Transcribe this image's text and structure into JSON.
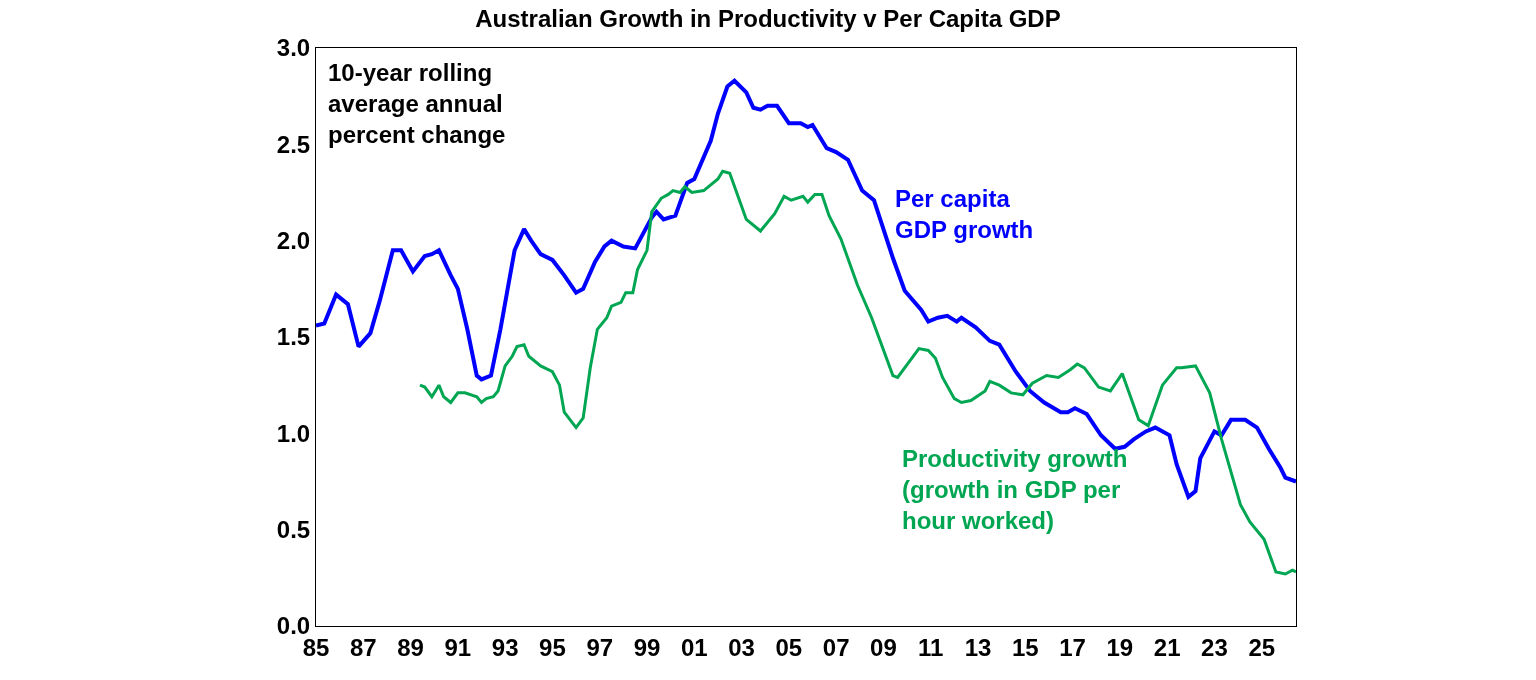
{
  "chart_data": {
    "type": "line",
    "title": "Australian Growth in Productivity v Per Capita GDP",
    "annotations": [
      "10-year rolling\naverage annual\npercent change"
    ],
    "xlim": [
      1985,
      2026.45
    ],
    "xticks": [
      {
        "value": 1985,
        "label": "85"
      },
      {
        "value": 1987,
        "label": "87"
      },
      {
        "value": 1989,
        "label": "89"
      },
      {
        "value": 1991,
        "label": "91"
      },
      {
        "value": 1993,
        "label": "93"
      },
      {
        "value": 1995,
        "label": "95"
      },
      {
        "value": 1997,
        "label": "97"
      },
      {
        "value": 1999,
        "label": "99"
      },
      {
        "value": 2001,
        "label": "01"
      },
      {
        "value": 2003,
        "label": "03"
      },
      {
        "value": 2005,
        "label": "05"
      },
      {
        "value": 2007,
        "label": "07"
      },
      {
        "value": 2009,
        "label": "09"
      },
      {
        "value": 2011,
        "label": "11"
      },
      {
        "value": 2013,
        "label": "13"
      },
      {
        "value": 2015,
        "label": "15"
      },
      {
        "value": 2017,
        "label": "17"
      },
      {
        "value": 2019,
        "label": "19"
      },
      {
        "value": 2021,
        "label": "21"
      },
      {
        "value": 2023,
        "label": "23"
      },
      {
        "value": 2025,
        "label": "25"
      }
    ],
    "ylim": [
      0,
      3
    ],
    "yticks": [
      {
        "value": 0,
        "label": "0.0"
      },
      {
        "value": 0.5,
        "label": "0.5"
      },
      {
        "value": 1,
        "label": "1.0"
      },
      {
        "value": 1.5,
        "label": "1.5"
      },
      {
        "value": 2,
        "label": "2.0"
      },
      {
        "value": 2.5,
        "label": "2.5"
      },
      {
        "value": 3,
        "label": "3.0"
      }
    ],
    "legend": false,
    "marker": "none",
    "line_style": "solid",
    "series": [
      {
        "name": "Per capita\nGDP growth",
        "color": "#0000ff",
        "x": [
          1985.0,
          1985.35,
          1985.85,
          1986.35,
          1986.8,
          1987.3,
          1987.7,
          1988.25,
          1988.6,
          1989.1,
          1989.6,
          1989.9,
          1990.2,
          1990.7,
          1991.0,
          1991.4,
          1991.8,
          1992.0,
          1992.4,
          1992.8,
          1993.4,
          1993.8,
          1994.1,
          1994.5,
          1995.0,
          1995.5,
          1996.0,
          1996.3,
          1996.8,
          1997.2,
          1997.5,
          1998.0,
          1998.5,
          1999.2,
          1999.4,
          1999.7,
          2000.2,
          2000.7,
          2001.0,
          2001.7,
          2002.0,
          2002.4,
          2002.7,
          2003.2,
          2003.5,
          2003.8,
          2004.1,
          2004.5,
          2005.0,
          2005.5,
          2005.8,
          2006.0,
          2006.6,
          2007.0,
          2007.5,
          2008.1,
          2008.6,
          2009.4,
          2009.9,
          2010.6,
          2010.9,
          2011.3,
          2011.7,
          2012.1,
          2012.3,
          2012.9,
          2013.5,
          2013.9,
          2014.6,
          2015.2,
          2015.8,
          2016.5,
          2016.8,
          2017.1,
          2017.6,
          2018.2,
          2018.8,
          2019.2,
          2019.6,
          2020.1,
          2020.5,
          2021.1,
          2021.4,
          2021.9,
          2022.2,
          2022.4,
          2023.0,
          2023.3,
          2023.7,
          2024.3,
          2024.8,
          2025.3,
          2025.8,
          2026.0,
          2026.45
        ],
        "values": [
          1.56,
          1.57,
          1.72,
          1.67,
          1.45,
          1.52,
          1.69,
          1.95,
          1.95,
          1.84,
          1.92,
          1.93,
          1.95,
          1.82,
          1.75,
          1.54,
          1.3,
          1.28,
          1.3,
          1.54,
          1.95,
          2.06,
          2.0,
          1.93,
          1.9,
          1.82,
          1.73,
          1.75,
          1.89,
          1.97,
          2.0,
          1.97,
          1.96,
          2.12,
          2.15,
          2.11,
          2.13,
          2.3,
          2.32,
          2.52,
          2.66,
          2.8,
          2.83,
          2.77,
          2.69,
          2.68,
          2.7,
          2.7,
          2.61,
          2.61,
          2.59,
          2.6,
          2.48,
          2.46,
          2.42,
          2.26,
          2.21,
          1.91,
          1.74,
          1.64,
          1.58,
          1.6,
          1.61,
          1.58,
          1.6,
          1.55,
          1.48,
          1.46,
          1.32,
          1.22,
          1.16,
          1.11,
          1.11,
          1.13,
          1.1,
          0.99,
          0.92,
          0.93,
          0.97,
          1.01,
          1.03,
          0.99,
          0.84,
          0.67,
          0.7,
          0.87,
          1.01,
          0.99,
          1.07,
          1.07,
          1.03,
          0.92,
          0.82,
          0.77,
          0.75
        ]
      },
      {
        "name": "Productivity growth\n(growth in GDP per\nhour worked)",
        "color": "#00a651",
        "x": [
          1989.4,
          1989.6,
          1989.9,
          1990.2,
          1990.4,
          1990.7,
          1991.0,
          1991.3,
          1991.8,
          1992.0,
          1992.2,
          1992.5,
          1992.7,
          1993.0,
          1993.3,
          1993.5,
          1993.8,
          1994.0,
          1994.5,
          1995.0,
          1995.3,
          1995.5,
          1996.0,
          1996.3,
          1996.6,
          1996.9,
          1997.3,
          1997.5,
          1997.9,
          1998.1,
          1998.4,
          1998.6,
          1999.0,
          1999.2,
          1999.6,
          1999.9,
          2000.1,
          2000.4,
          2000.6,
          2000.9,
          2001.4,
          2002.0,
          2002.2,
          2002.5,
          2003.2,
          2003.8,
          2004.4,
          2004.8,
          2005.1,
          2005.6,
          2005.8,
          2006.1,
          2006.4,
          2006.7,
          2007.2,
          2007.9,
          2008.5,
          2009.4,
          2009.6,
          2010.5,
          2010.9,
          2011.2,
          2011.5,
          2012.0,
          2012.3,
          2012.7,
          2013.3,
          2013.5,
          2013.9,
          2014.4,
          2014.9,
          2015.3,
          2015.9,
          2016.4,
          2016.9,
          2017.2,
          2017.5,
          2018.1,
          2018.6,
          2019.1,
          2019.8,
          2020.2,
          2020.8,
          2021.4,
          2021.6,
          2022.2,
          2022.8,
          2023.3,
          2024.1,
          2024.5,
          2025.1,
          2025.6,
          2026.0,
          2026.3,
          2026.45
        ],
        "values": [
          1.25,
          1.24,
          1.19,
          1.25,
          1.19,
          1.16,
          1.21,
          1.21,
          1.19,
          1.16,
          1.18,
          1.19,
          1.22,
          1.35,
          1.4,
          1.45,
          1.46,
          1.4,
          1.35,
          1.32,
          1.25,
          1.11,
          1.03,
          1.08,
          1.34,
          1.54,
          1.6,
          1.66,
          1.68,
          1.73,
          1.73,
          1.85,
          1.95,
          2.15,
          2.22,
          2.24,
          2.26,
          2.25,
          2.28,
          2.25,
          2.26,
          2.32,
          2.36,
          2.35,
          2.11,
          2.05,
          2.14,
          2.23,
          2.21,
          2.23,
          2.2,
          2.24,
          2.24,
          2.13,
          2.01,
          1.77,
          1.6,
          1.3,
          1.29,
          1.44,
          1.43,
          1.39,
          1.29,
          1.18,
          1.16,
          1.17,
          1.22,
          1.27,
          1.25,
          1.21,
          1.2,
          1.26,
          1.3,
          1.29,
          1.33,
          1.36,
          1.34,
          1.24,
          1.22,
          1.31,
          1.07,
          1.04,
          1.25,
          1.34,
          1.34,
          1.35,
          1.21,
          0.97,
          0.63,
          0.54,
          0.45,
          0.28,
          0.27,
          0.29,
          0.28
        ]
      }
    ]
  }
}
